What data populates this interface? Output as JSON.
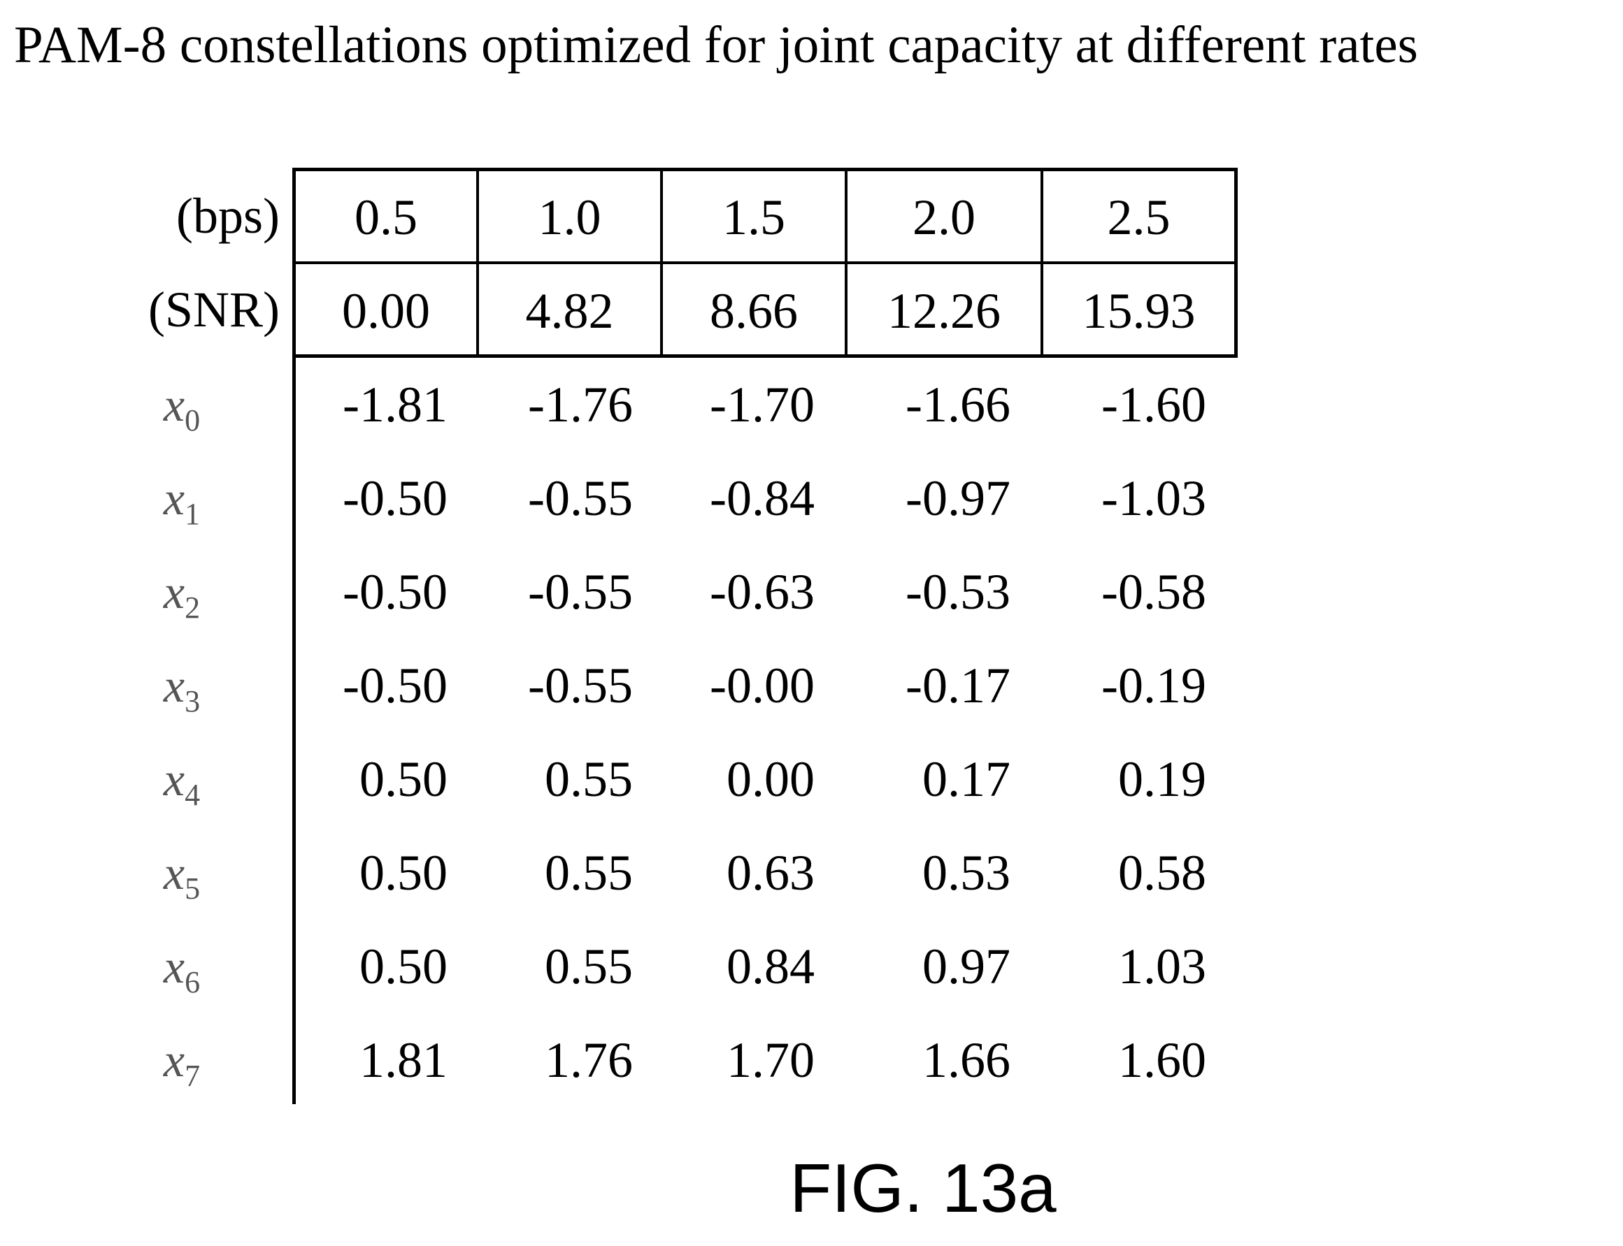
{
  "title": "PAM-8 constellations optimized for joint capacity at different rates",
  "header": {
    "bps_label": "(bps)",
    "snr_label": "(SNR)",
    "bps": [
      "0.5",
      "1.0",
      "1.5",
      "2.0",
      "2.5"
    ],
    "snr": [
      "0.00",
      "4.82",
      "8.66",
      "12.26",
      "15.93"
    ]
  },
  "rows": [
    {
      "symbol": "x",
      "index": "0",
      "values": [
        "-1.81",
        "-1.76",
        "-1.70",
        "-1.66",
        "-1.60"
      ]
    },
    {
      "symbol": "x",
      "index": "1",
      "values": [
        "-0.50",
        "-0.55",
        "-0.84",
        "-0.97",
        "-1.03"
      ]
    },
    {
      "symbol": "x",
      "index": "2",
      "values": [
        "-0.50",
        "-0.55",
        "-0.63",
        "-0.53",
        "-0.58"
      ]
    },
    {
      "symbol": "x",
      "index": "3",
      "values": [
        "-0.50",
        "-0.55",
        "-0.00",
        "-0.17",
        "-0.19"
      ]
    },
    {
      "symbol": "x",
      "index": "4",
      "values": [
        "0.50",
        "0.55",
        "0.00",
        "0.17",
        "0.19"
      ]
    },
    {
      "symbol": "x",
      "index": "5",
      "values": [
        "0.50",
        "0.55",
        "0.63",
        "0.53",
        "0.58"
      ]
    },
    {
      "symbol": "x",
      "index": "6",
      "values": [
        "0.50",
        "0.55",
        "0.84",
        "0.97",
        "1.03"
      ]
    },
    {
      "symbol": "x",
      "index": "7",
      "values": [
        "1.81",
        "1.76",
        "1.70",
        "1.66",
        "1.60"
      ]
    }
  ],
  "caption": "FIG. 13a"
}
